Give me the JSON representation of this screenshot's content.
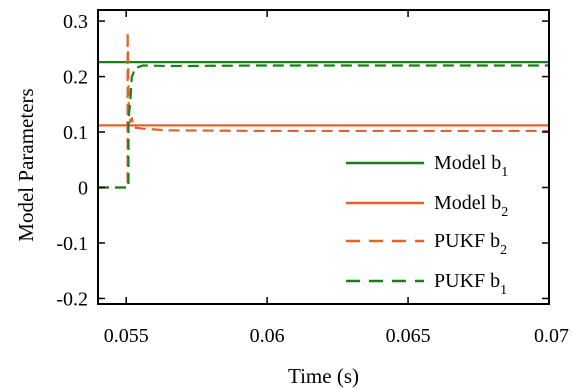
{
  "chart_data": {
    "type": "line",
    "xlabel": "Time (s)",
    "ylabel": "Model Parameters",
    "xlim": [
      0.054,
      0.07
    ],
    "ylim": [
      -0.21,
      0.32
    ],
    "xticks": [
      0.055,
      0.06,
      0.065,
      0.07
    ],
    "xtick_labels": [
      "0.055",
      "0.06",
      "0.065",
      "0.07"
    ],
    "yticks": [
      -0.2,
      -0.1,
      0,
      0.1,
      0.2,
      0.3
    ],
    "ytick_labels": [
      "-0.2",
      "-0.1",
      "0",
      "0.1",
      "0.2",
      "0.3"
    ],
    "grid": false,
    "legend_position": "lower-right",
    "series": [
      {
        "name_base": "Model b",
        "name_sub": "1",
        "color": "#1a7f1a",
        "dash": "solid",
        "x": [
          0.054,
          0.07
        ],
        "y": [
          0.226,
          0.226
        ]
      },
      {
        "name_base": "Model b",
        "name_sub": "2",
        "color": "#e2632c",
        "dash": "solid",
        "x": [
          0.054,
          0.07
        ],
        "y": [
          0.112,
          0.112
        ]
      },
      {
        "name_base": "PUKF b",
        "name_sub": "2",
        "color": "#e2632c",
        "dash": "dashed",
        "x": [
          0.054,
          0.05505,
          0.05505,
          0.0551,
          0.05515,
          0.0552,
          0.0553,
          0.0556,
          0.0565,
          0.06,
          0.065,
          0.07
        ],
        "y": [
          0,
          0,
          0.28,
          0.13,
          0.118,
          0.125,
          0.108,
          0.106,
          0.103,
          0.102,
          0.102,
          0.102
        ]
      },
      {
        "name_base": "PUKF b",
        "name_sub": "1",
        "color": "#1a7f1a",
        "dash": "dashed",
        "x": [
          0.054,
          0.05508,
          0.05508,
          0.05515,
          0.0552,
          0.05525,
          0.0553,
          0.0556,
          0.0565,
          0.06,
          0.065,
          0.07
        ],
        "y": [
          0,
          0,
          0.12,
          0.16,
          0.2,
          0.205,
          0.215,
          0.22,
          0.219,
          0.22,
          0.22,
          0.22
        ]
      }
    ]
  }
}
